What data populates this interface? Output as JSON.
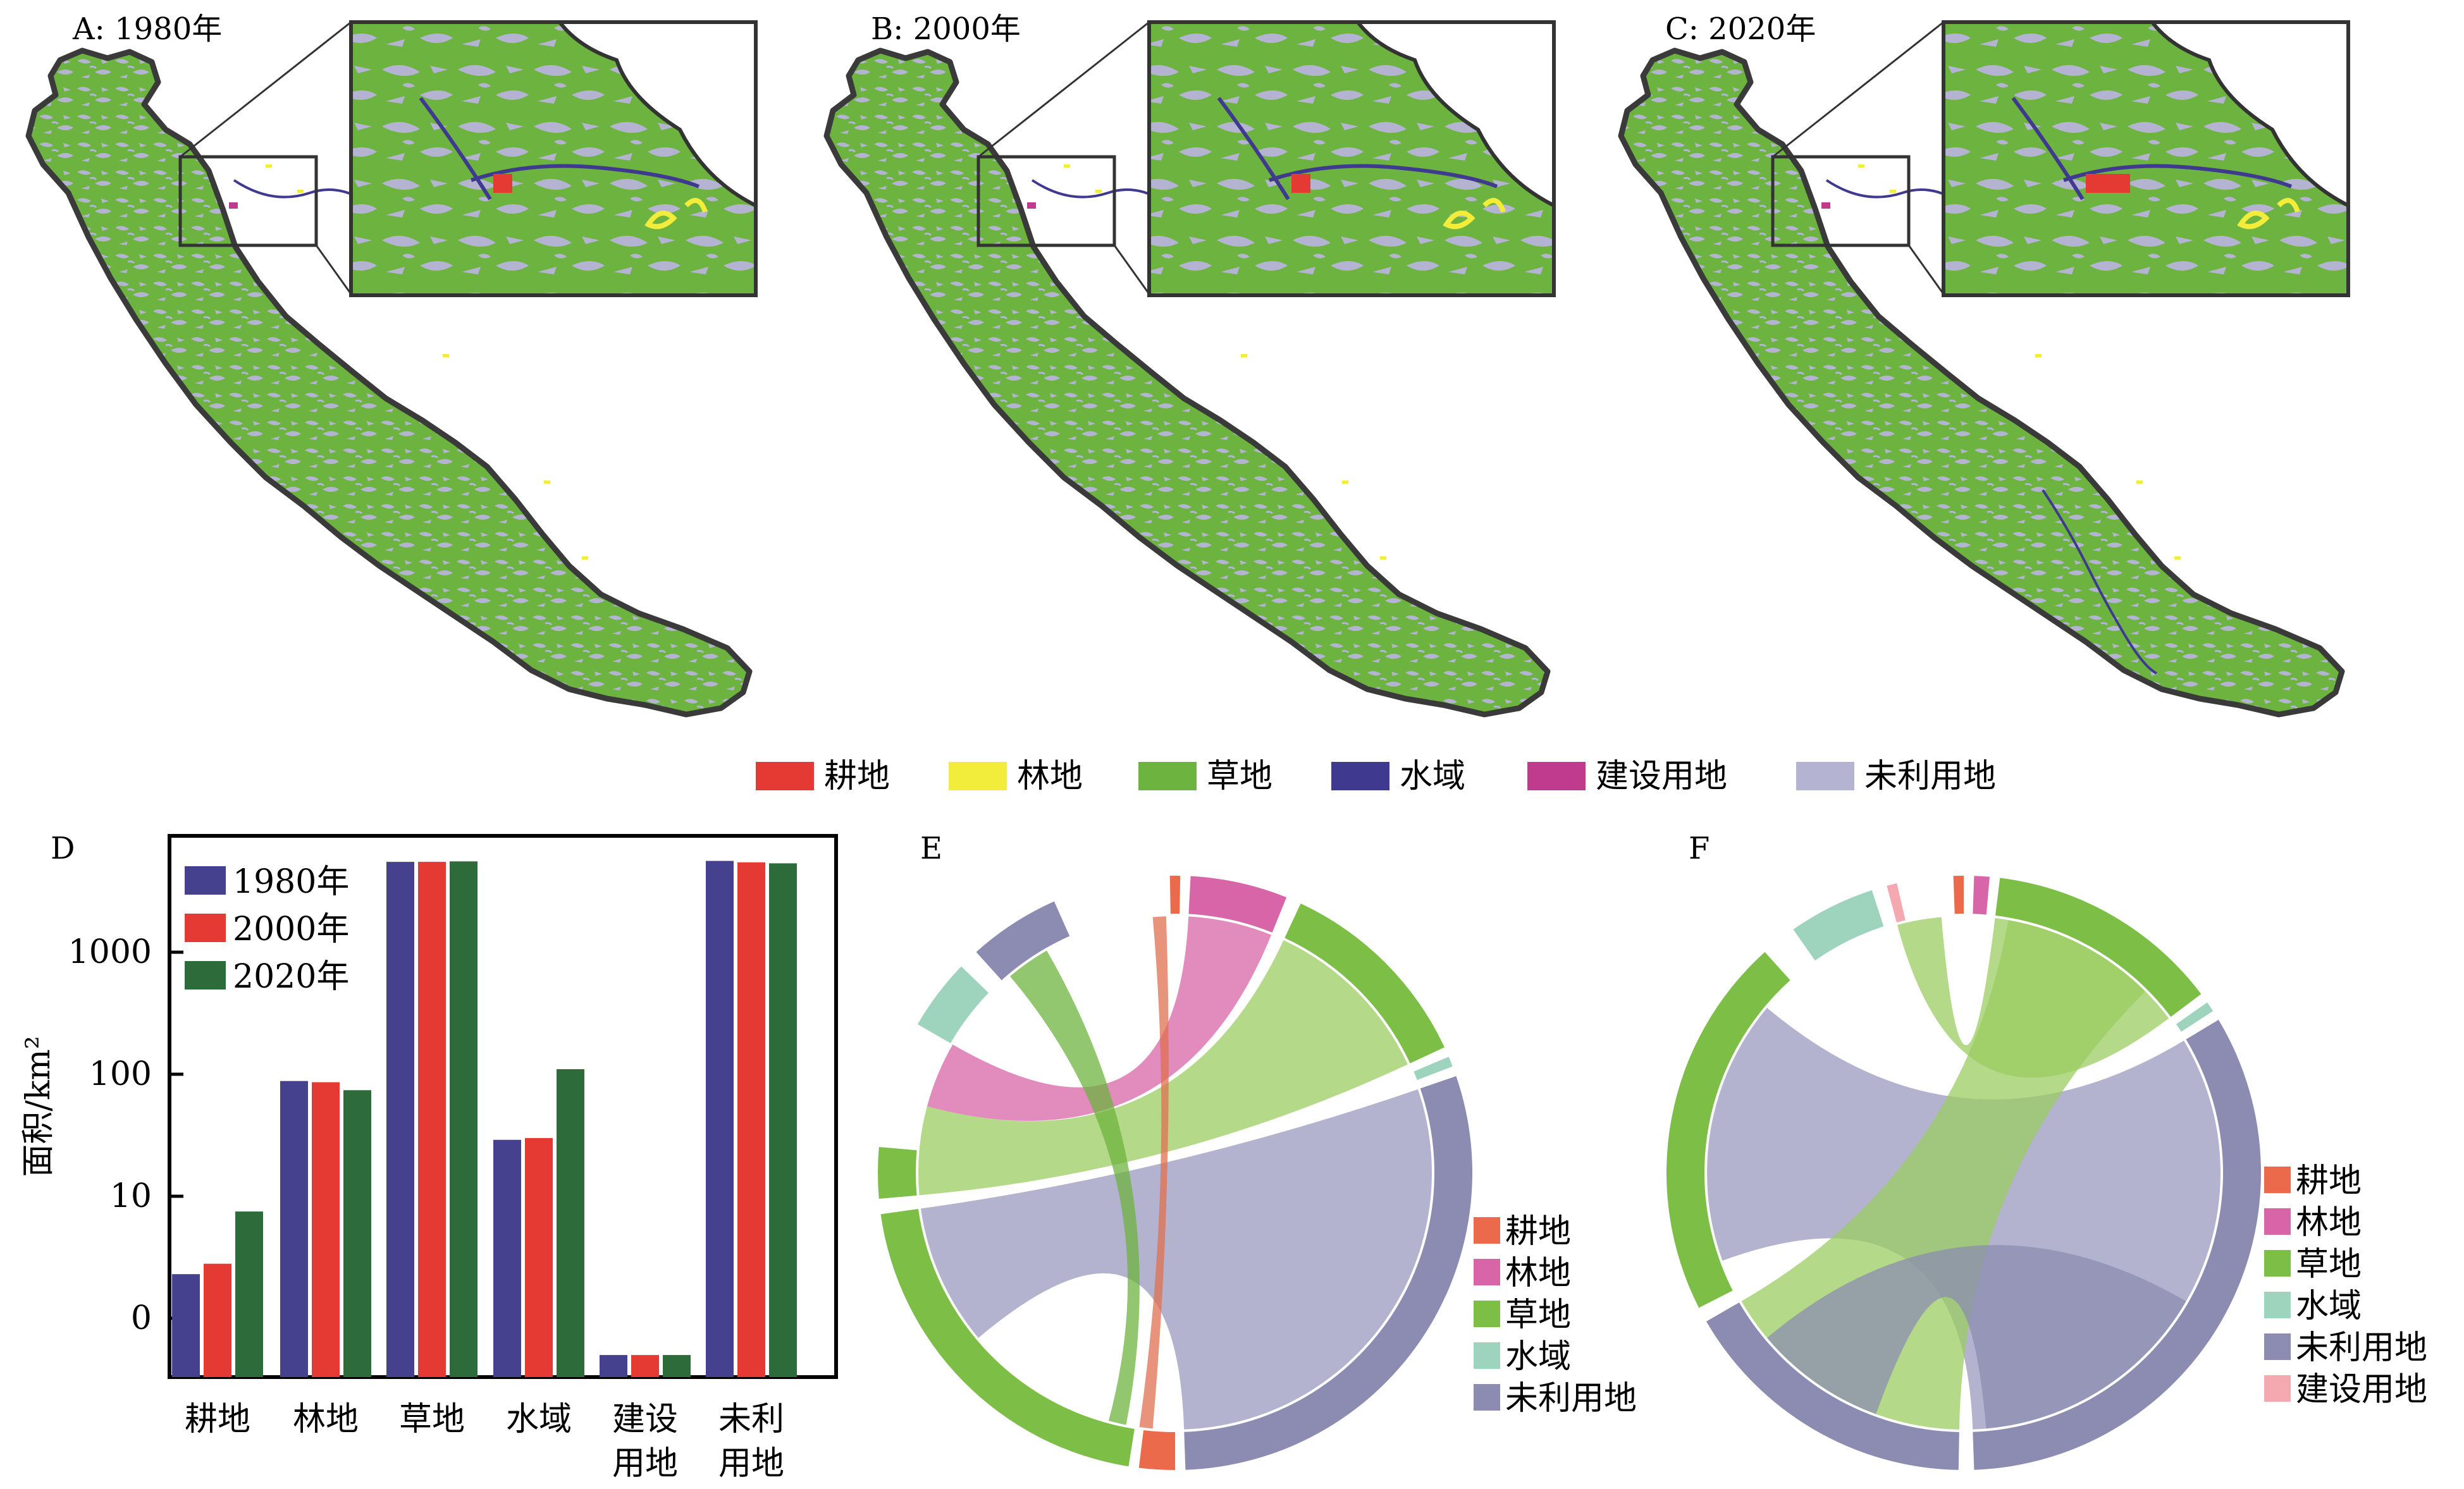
{
  "maps": [
    {
      "label": "A: 1980年"
    },
    {
      "label": "B: 2000年"
    },
    {
      "label": "C: 2020年"
    }
  ],
  "map_legend": [
    {
      "name": "耕地",
      "color": "#e53a33"
    },
    {
      "name": "林地",
      "color": "#f2ec3a"
    },
    {
      "name": "草地",
      "color": "#6db33f"
    },
    {
      "name": "水域",
      "color": "#3f3a8f"
    },
    {
      "name": "建设用地",
      "color": "#c03a8e"
    },
    {
      "name": "未利用地",
      "color": "#b4b4d2"
    }
  ],
  "colors": {
    "grass": "#6db33f",
    "unused": "#b4b4d2",
    "forest": "#f2ec3a",
    "crop": "#e53a33",
    "water": "#3f3a8f",
    "built": "#c03a8e",
    "chord_crop": "#ec6a4c",
    "chord_forest": "#d865a7",
    "chord_grass": "#7cbe46",
    "chord_water": "#9ed3bd",
    "chord_unused": "#8c8cb2",
    "chord_built": "#f4a9b0"
  },
  "chart_data": {
    "type": "bar",
    "panel_label": "D",
    "categories": [
      "耕地",
      "林地",
      "草地",
      "水域",
      "建设\n用地",
      "未利\n用地"
    ],
    "series": [
      {
        "name": "1980年",
        "color": "#46418e",
        "values": [
          2.3,
          88,
          5500,
          29,
          0.5,
          5600
        ]
      },
      {
        "name": "2000年",
        "color": "#e53a33",
        "values": [
          2.8,
          86,
          5500,
          30,
          0.5,
          5450
        ]
      },
      {
        "name": "2020年",
        "color": "#2e6b3a",
        "values": [
          7.5,
          74,
          5550,
          110,
          0.5,
          5350
        ]
      }
    ],
    "ylabel": "面积/km²",
    "yticks": [
      "0",
      "10",
      "100",
      "1000"
    ],
    "yscale": "log"
  },
  "chords": [
    {
      "label": "E",
      "legend": [
        "耕地",
        "林地",
        "草地",
        "水域",
        "未利用地"
      ]
    },
    {
      "label": "F",
      "legend": [
        "耕地",
        "林地",
        "草地",
        "水域",
        "未利用地",
        "建设用地"
      ]
    }
  ]
}
